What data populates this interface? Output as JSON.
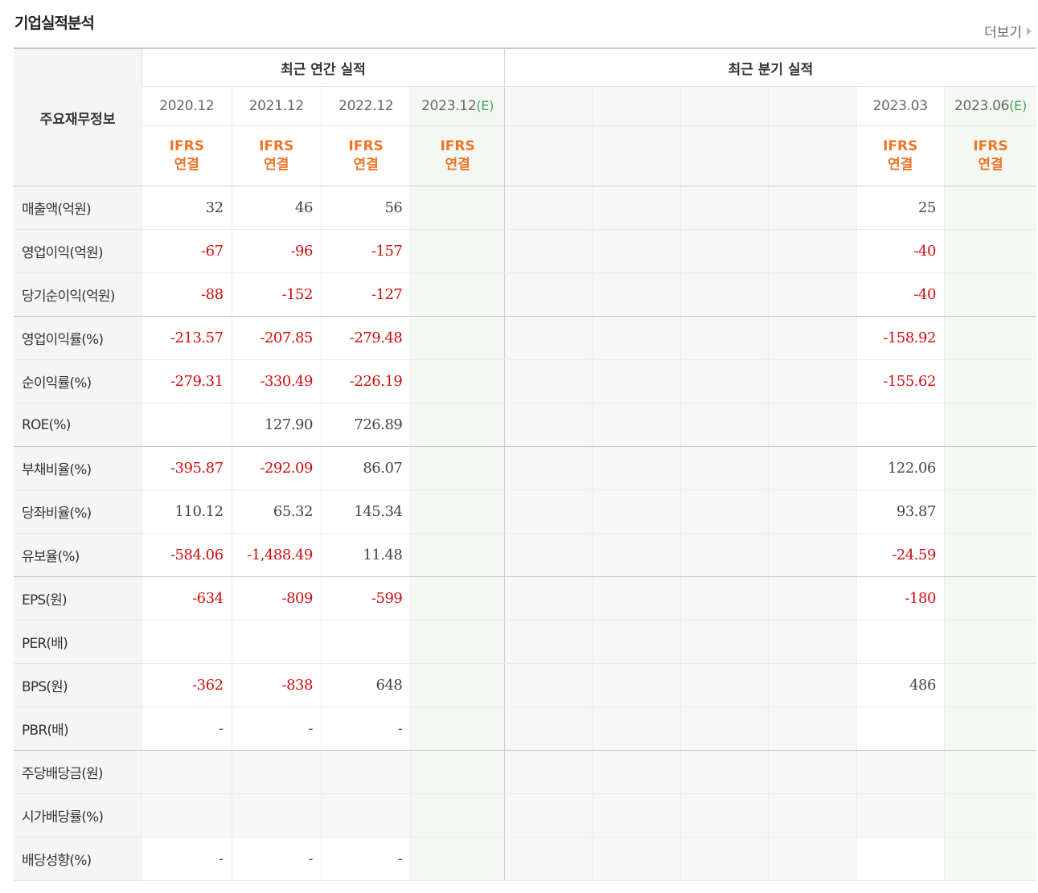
{
  "title": "기업실적분석",
  "more_label": "더보기",
  "header": {
    "label_col": "주요재무정보",
    "annual_group": "최근 연간 실적",
    "quarter_group": "최근 분기 실적"
  },
  "annual_dates": [
    "2020.12",
    "2021.12",
    "2022.12",
    "2023.12"
  ],
  "annual_est_marker": "(E)",
  "quarter_dates": [
    "",
    "",
    "",
    "",
    "2023.03",
    "2023.06"
  ],
  "quarter_est_marker": "(E)",
  "ifrs_line1": "IFRS",
  "ifrs_line2": "연결",
  "rows": [
    {
      "label": "매출액(억원)",
      "a": [
        "32",
        "46",
        "56",
        ""
      ],
      "q": [
        "",
        "",
        "",
        "",
        "25",
        ""
      ]
    },
    {
      "label": "영업이익(억원)",
      "a": [
        "-67",
        "-96",
        "-157",
        ""
      ],
      "q": [
        "",
        "",
        "",
        "",
        "-40",
        ""
      ]
    },
    {
      "label": "당기순이익(억원)",
      "a": [
        "-88",
        "-152",
        "-127",
        ""
      ],
      "q": [
        "",
        "",
        "",
        "",
        "-40",
        ""
      ]
    },
    {
      "label": "영업이익률(%)",
      "a": [
        "-213.57",
        "-207.85",
        "-279.48",
        ""
      ],
      "q": [
        "",
        "",
        "",
        "",
        "-158.92",
        ""
      ]
    },
    {
      "label": "순이익률(%)",
      "a": [
        "-279.31",
        "-330.49",
        "-226.19",
        ""
      ],
      "q": [
        "",
        "",
        "",
        "",
        "-155.62",
        ""
      ]
    },
    {
      "label": "ROE(%)",
      "a": [
        "",
        "127.90",
        "726.89",
        ""
      ],
      "q": [
        "",
        "",
        "",
        "",
        "",
        ""
      ]
    },
    {
      "label": "부채비율(%)",
      "a": [
        "-395.87",
        "-292.09",
        "86.07",
        ""
      ],
      "q": [
        "",
        "",
        "",
        "",
        "122.06",
        ""
      ]
    },
    {
      "label": "당좌비율(%)",
      "a": [
        "110.12",
        "65.32",
        "145.34",
        ""
      ],
      "q": [
        "",
        "",
        "",
        "",
        "93.87",
        ""
      ]
    },
    {
      "label": "유보율(%)",
      "a": [
        "-584.06",
        "-1,488.49",
        "11.48",
        ""
      ],
      "q": [
        "",
        "",
        "",
        "",
        "-24.59",
        ""
      ]
    },
    {
      "label": "EPS(원)",
      "a": [
        "-634",
        "-809",
        "-599",
        ""
      ],
      "q": [
        "",
        "",
        "",
        "",
        "-180",
        ""
      ]
    },
    {
      "label": "PER(배)",
      "a": [
        "",
        "",
        "",
        ""
      ],
      "q": [
        "",
        "",
        "",
        "",
        "",
        ""
      ]
    },
    {
      "label": "BPS(원)",
      "a": [
        "-362",
        "-838",
        "648",
        ""
      ],
      "q": [
        "",
        "",
        "",
        "",
        "486",
        ""
      ]
    },
    {
      "label": "PBR(배)",
      "a": [
        "-",
        "-",
        "-",
        ""
      ],
      "q": [
        "",
        "",
        "",
        "",
        "",
        ""
      ]
    },
    {
      "label": "주당배당금(원)",
      "a": [
        "",
        "",
        "",
        ""
      ],
      "q": [
        "",
        "",
        "",
        "",
        "",
        ""
      ]
    },
    {
      "label": "시가배당률(%)",
      "a": [
        "",
        "",
        "",
        ""
      ],
      "q": [
        "",
        "",
        "",
        "",
        "",
        ""
      ]
    },
    {
      "label": "배당성향(%)",
      "a": [
        "-",
        "-",
        "-",
        ""
      ],
      "q": [
        "",
        "",
        "",
        "",
        "",
        ""
      ]
    }
  ],
  "colors": {
    "negative": "#d00d0d",
    "ifrs": "#ee7428",
    "estimate_bg": "#f3f8f3",
    "label_bg": "#f5f5f5"
  }
}
